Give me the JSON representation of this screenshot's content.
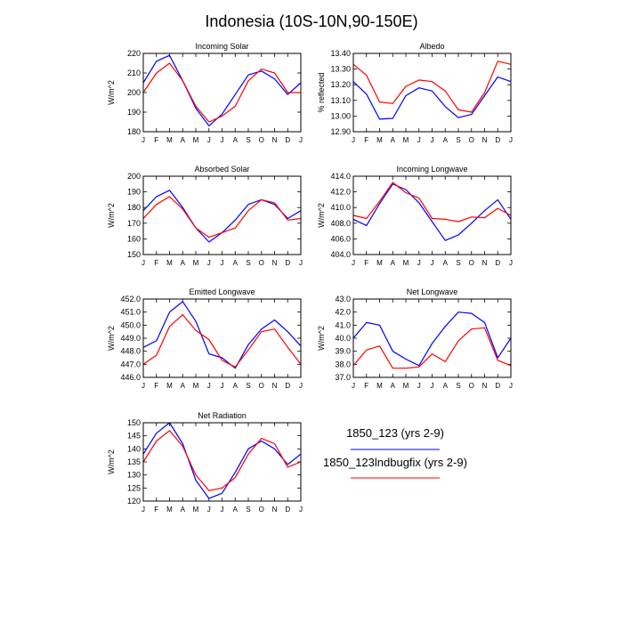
{
  "title": "Indonesia (10S-10N,90-150E)",
  "months": [
    "J",
    "F",
    "M",
    "A",
    "M",
    "J",
    "J",
    "A",
    "S",
    "O",
    "N",
    "D",
    "J"
  ],
  "colors": {
    "series1": "#0000ff",
    "series2": "#ff0000",
    "axis": "#000000"
  },
  "legend": [
    {
      "label": "1850_123 (yrs 2-9)",
      "color": "#0000ff"
    },
    {
      "label": "1850_123lndbugfix (yrs 2-9)",
      "color": "#ff0000"
    }
  ],
  "chart_data": [
    {
      "type": "line",
      "title": "Incoming Solar",
      "ylabel": "W/m^2",
      "ylim": [
        180,
        220
      ],
      "yticks": [
        180,
        190,
        200,
        210,
        220
      ],
      "yticklabels": [
        "180",
        "190",
        "200",
        "210",
        "220"
      ],
      "series": [
        {
          "name": "1850_123 (yrs 2-9)",
          "values": [
            205,
            216,
            219,
            206,
            192,
            183,
            189,
            199,
            209,
            211,
            207,
            199,
            205
          ]
        },
        {
          "name": "1850_123lndbugfix (yrs 2-9)",
          "values": [
            200,
            210,
            215,
            206,
            193,
            185,
            188,
            193,
            206,
            212,
            210,
            200,
            200
          ]
        }
      ]
    },
    {
      "type": "line",
      "title": "Albedo",
      "ylabel": "% reflected",
      "ylim": [
        12.9,
        13.4
      ],
      "yticks": [
        12.9,
        13.0,
        13.1,
        13.2,
        13.3,
        13.4
      ],
      "yticklabels": [
        "12.90",
        "13.00",
        "13.10",
        "13.20",
        "13.30",
        "13.40"
      ],
      "series": [
        {
          "name": "1850_123 (yrs 2-9)",
          "values": [
            13.22,
            13.14,
            12.98,
            12.985,
            13.13,
            13.18,
            13.16,
            13.06,
            12.99,
            13.01,
            13.13,
            13.25,
            13.22
          ]
        },
        {
          "name": "1850_123lndbugfix (yrs 2-9)",
          "values": [
            13.33,
            13.26,
            13.09,
            13.08,
            13.19,
            13.23,
            13.22,
            13.16,
            13.04,
            13.025,
            13.15,
            13.35,
            13.33
          ]
        }
      ]
    },
    {
      "type": "line",
      "title": "Absorbed Solar",
      "ylabel": "W/m^2",
      "ylim": [
        150,
        200
      ],
      "yticks": [
        150,
        160,
        170,
        180,
        190,
        200
      ],
      "yticklabels": [
        "150",
        "160",
        "170",
        "180",
        "190",
        "200"
      ],
      "series": [
        {
          "name": "1850_123 (yrs 2-9)",
          "values": [
            178,
            187,
            191,
            180,
            167,
            158,
            164,
            172,
            182,
            185,
            182,
            173,
            178
          ]
        },
        {
          "name": "1850_123lndbugfix (yrs 2-9)",
          "values": [
            173,
            182,
            187,
            179,
            167,
            161,
            164,
            167,
            178,
            185,
            183,
            172,
            173
          ]
        }
      ]
    },
    {
      "type": "line",
      "title": "Incoming Longwave",
      "ylabel": "W/m^2",
      "ylim": [
        404,
        414
      ],
      "yticks": [
        404,
        406,
        408,
        410,
        412,
        414
      ],
      "yticklabels": [
        "404.0",
        "406.0",
        "408.0",
        "410.0",
        "412.0",
        "414.0"
      ],
      "series": [
        {
          "name": "1850_123 (yrs 2-9)",
          "values": [
            408.5,
            407.7,
            410.5,
            413.0,
            412.3,
            410.6,
            408.2,
            405.8,
            406.5,
            408.0,
            409.6,
            411.0,
            408.5
          ]
        },
        {
          "name": "1850_123lndbugfix (yrs 2-9)",
          "values": [
            409.0,
            408.6,
            410.8,
            413.2,
            411.9,
            411.2,
            408.6,
            408.5,
            408.2,
            408.8,
            408.7,
            409.9,
            409.0
          ]
        }
      ]
    },
    {
      "type": "line",
      "title": "Emitted Longwave",
      "ylabel": "W/m^2",
      "ylim": [
        446,
        452
      ],
      "yticks": [
        446,
        447,
        448,
        449,
        450,
        451,
        452
      ],
      "yticklabels": [
        "446.0",
        "447.0",
        "448.0",
        "449.0",
        "450.0",
        "451.0",
        "452.0"
      ],
      "series": [
        {
          "name": "1850_123 (yrs 2-9)",
          "values": [
            448.3,
            448.8,
            451.0,
            451.8,
            450.3,
            447.8,
            447.5,
            446.7,
            448.5,
            449.7,
            450.4,
            449.5,
            448.4
          ]
        },
        {
          "name": "1850_123lndbugfix (yrs 2-9)",
          "values": [
            447.0,
            447.7,
            449.9,
            450.8,
            449.6,
            448.9,
            447.3,
            446.8,
            448.1,
            449.5,
            449.7,
            448.3,
            447.0
          ]
        }
      ]
    },
    {
      "type": "line",
      "title": "Net Longwave",
      "ylabel": "W/m^2",
      "ylim": [
        37,
        43
      ],
      "yticks": [
        37,
        38,
        39,
        40,
        41,
        42,
        43
      ],
      "yticklabels": [
        "37.0",
        "38.0",
        "39.0",
        "40.0",
        "41.0",
        "42.0",
        "43.0"
      ],
      "series": [
        {
          "name": "1850_123 (yrs 2-9)",
          "values": [
            40.0,
            41.2,
            41.0,
            39.0,
            38.4,
            37.9,
            39.6,
            40.9,
            42.0,
            41.9,
            41.2,
            38.5,
            40.0
          ]
        },
        {
          "name": "1850_123lndbugfix (yrs 2-9)",
          "values": [
            37.9,
            39.1,
            39.4,
            37.7,
            37.7,
            37.8,
            38.8,
            38.2,
            39.8,
            40.7,
            40.8,
            38.3,
            37.9
          ]
        }
      ]
    },
    {
      "type": "line",
      "title": "Net Radiation",
      "ylabel": "W/m^2",
      "ylim": [
        120,
        150
      ],
      "yticks": [
        120,
        125,
        130,
        135,
        140,
        145,
        150
      ],
      "yticklabels": [
        "120",
        "125",
        "130",
        "135",
        "140",
        "145",
        "150"
      ],
      "series": [
        {
          "name": "1850_123 (yrs 2-9)",
          "values": [
            138,
            146,
            150,
            142,
            128,
            121,
            123,
            131,
            140,
            143,
            140,
            134,
            138
          ]
        },
        {
          "name": "1850_123lndbugfix (yrs 2-9)",
          "values": [
            135,
            143,
            147,
            141,
            130,
            124,
            125,
            129,
            138,
            144,
            142,
            133,
            135
          ]
        }
      ]
    }
  ]
}
